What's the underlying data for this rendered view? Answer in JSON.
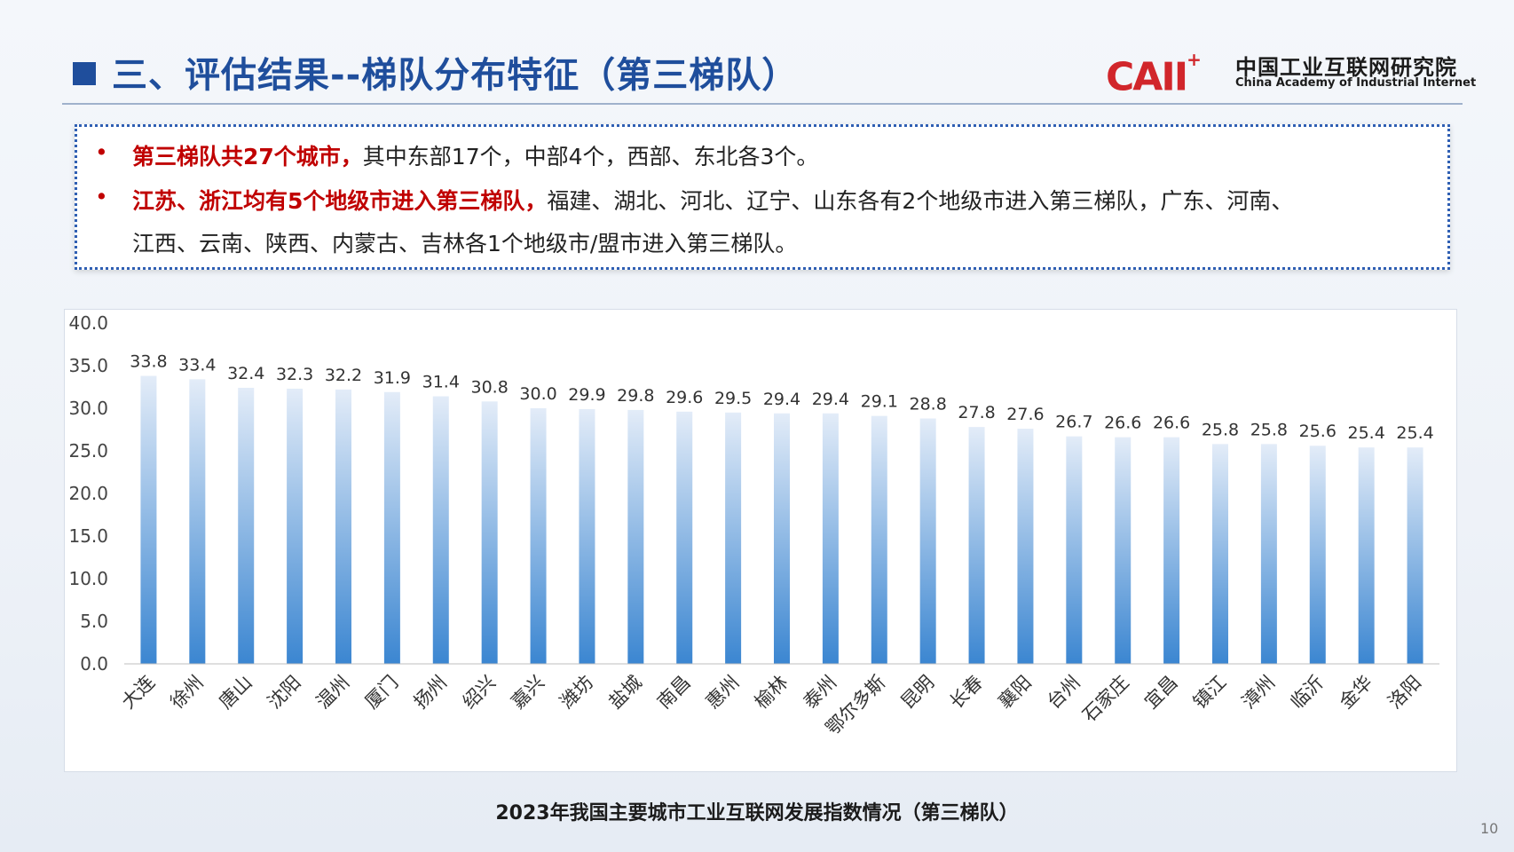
{
  "header": {
    "title": "三、评估结果--梯队分布特征（第三梯队）",
    "logo_mark": "CAII",
    "logo_plus": "+",
    "logo_cn": "中国工业互联网研究院",
    "logo_en": "China Academy of Industrial Internet"
  },
  "bullets": [
    {
      "highlight": "第三梯队共27个城市，",
      "text": "其中东部17个，中部4个，西部、东北各3个。"
    },
    {
      "highlight": "江苏、浙江均有5个地级市进入第三梯队，",
      "text": "福建、湖北、河北、辽宁、山东各有2个地级市进入第三梯队，广东、河南、",
      "continuation": "江西、云南、陕西、内蒙古、吉林各1个地级市/盟市进入第三梯队。"
    }
  ],
  "chart_caption": "2023年我国主要城市工业互联网发展指数情况（第三梯队）",
  "page_number": "10",
  "colors": {
    "title_blue": "#1f4e9c",
    "highlight_red": "#c00000",
    "bar_top": "#e3ecf8",
    "bar_bottom": "#3b86d1"
  },
  "chart_data": {
    "type": "bar",
    "categories": [
      "大连",
      "徐州",
      "唐山",
      "沈阳",
      "温州",
      "厦门",
      "扬州",
      "绍兴",
      "嘉兴",
      "潍坊",
      "盐城",
      "南昌",
      "惠州",
      "榆林",
      "泰州",
      "鄂尔多斯",
      "昆明",
      "长春",
      "襄阳",
      "台州",
      "石家庄",
      "宜昌",
      "镇江",
      "漳州",
      "临沂",
      "金华",
      "洛阳"
    ],
    "values": [
      33.8,
      33.4,
      32.4,
      32.3,
      32.2,
      31.9,
      31.4,
      30.8,
      30.0,
      29.9,
      29.8,
      29.6,
      29.5,
      29.4,
      29.4,
      29.1,
      28.8,
      27.8,
      27.6,
      26.7,
      26.6,
      26.6,
      25.8,
      25.8,
      25.6,
      25.4,
      25.4
    ],
    "value_labels": [
      "33.8",
      "33.4",
      "32.4",
      "32.3",
      "32.2",
      "31.9",
      "31.4",
      "30.8",
      "30.0",
      "29.9",
      "29.8",
      "29.6",
      "29.5",
      "29.4",
      "29.4",
      "29.1",
      "28.8",
      "27.8",
      "27.6",
      "26.7",
      "26.6",
      "26.6",
      "25.8",
      "25.8",
      "25.6",
      "25.4",
      "25.4"
    ],
    "y_ticks": [
      "0.0",
      "5.0",
      "10.0",
      "15.0",
      "20.0",
      "25.0",
      "30.0",
      "35.0",
      "40.0"
    ],
    "ylim": [
      0,
      40
    ],
    "grid": false,
    "legend": "none"
  }
}
